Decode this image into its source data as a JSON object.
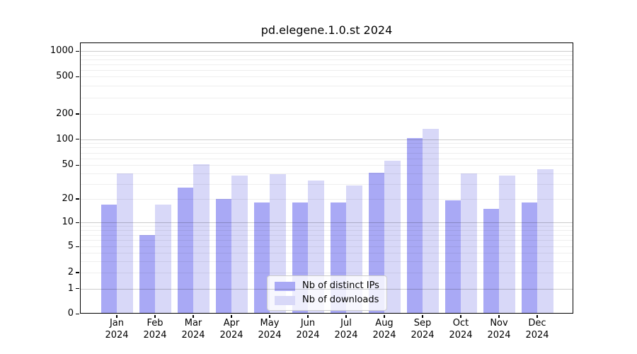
{
  "chart_data": {
    "type": "bar",
    "title": "pd.elegene.1.0.st 2024",
    "categories": [
      "Jan 2024",
      "Feb 2024",
      "Mar 2024",
      "Apr 2024",
      "May 2024",
      "Jun 2024",
      "Jul 2024",
      "Aug 2024",
      "Sep 2024",
      "Oct 2024",
      "Nov 2024",
      "Dec 2024"
    ],
    "series": [
      {
        "name": "Nb of distinct IPs",
        "color": "#a9a9f5",
        "values": [
          17,
          7,
          27,
          20,
          18,
          18,
          18,
          41,
          103,
          19,
          15,
          18
        ]
      },
      {
        "name": "Nb of downloads",
        "color": "#d8d8f8",
        "values": [
          40,
          17,
          51,
          38,
          39,
          33,
          29,
          56,
          133,
          40,
          38,
          45
        ]
      }
    ],
    "xlabel": "",
    "ylabel": "",
    "yscale": "symlog",
    "y_ticks": [
      0,
      1,
      2,
      5,
      10,
      20,
      50,
      100,
      200,
      500,
      1000
    ],
    "ylim": [
      0,
      1260
    ],
    "grid": true,
    "legend": {
      "position": "inside lower center"
    }
  },
  "colors": {
    "grid_major": "rgba(0,0,0,0.20)",
    "grid_minor": "rgba(0,0,0,0.065)",
    "spine": "#000000",
    "background": "#ffffff"
  }
}
